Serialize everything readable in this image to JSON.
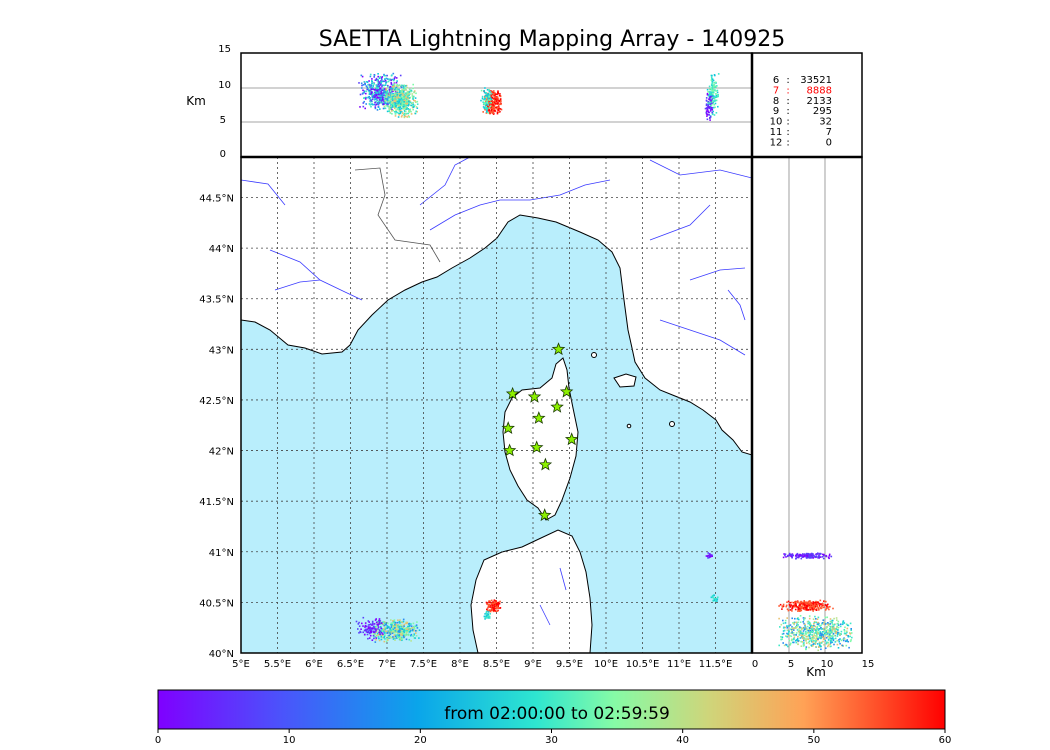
{
  "title": "SAETTA Lightning Mapping Array - 140925",
  "alt_panel": {
    "ylabel": "Km",
    "yticks": [
      "0",
      "5",
      "10",
      "15"
    ]
  },
  "side_panel": {
    "xlabel": "Km",
    "xticks": [
      "0",
      "5",
      "10",
      "15"
    ]
  },
  "map": {
    "lon_ticks": [
      "5°E",
      "5.5°E",
      "6°E",
      "6.5°E",
      "7°E",
      "7.5°E",
      "8°E",
      "8.5°E",
      "9°E",
      "9.5°E",
      "10°E",
      "10.5°E",
      "11°E",
      "11.5°E"
    ],
    "lat_ticks": [
      "40°N",
      "40.5°N",
      "41°N",
      "41.5°N",
      "42°N",
      "42.5°N",
      "43°N",
      "43.5°N",
      "44°N",
      "44.5°N"
    ],
    "sea_color": "#b9eefc",
    "land_color": "#ffffff",
    "station_marker": "green-star",
    "stations": [
      {
        "lon": 9.35,
        "lat": 43.0
      },
      {
        "lon": 8.72,
        "lat": 42.56
      },
      {
        "lon": 9.02,
        "lat": 42.53
      },
      {
        "lon": 9.46,
        "lat": 42.58
      },
      {
        "lon": 9.33,
        "lat": 42.43
      },
      {
        "lon": 9.08,
        "lat": 42.32
      },
      {
        "lon": 8.66,
        "lat": 42.22
      },
      {
        "lon": 9.53,
        "lat": 42.11
      },
      {
        "lon": 8.68,
        "lat": 42.0
      },
      {
        "lon": 9.05,
        "lat": 42.03
      },
      {
        "lon": 9.17,
        "lat": 41.86
      },
      {
        "lon": 9.16,
        "lat": 41.36
      }
    ]
  },
  "stats": [
    {
      "label": "6",
      "value": "33521",
      "color": "#000000"
    },
    {
      "label": "7",
      "value": "8888",
      "color": "#ff0000"
    },
    {
      "label": "8",
      "value": "2133",
      "color": "#000000"
    },
    {
      "label": "9",
      "value": "295",
      "color": "#000000"
    },
    {
      "label": "10",
      "value": "32",
      "color": "#000000"
    },
    {
      "label": "11",
      "value": "7",
      "color": "#000000"
    },
    {
      "label": "12",
      "value": "0",
      "color": "#000000"
    }
  ],
  "colorbar": {
    "label": "from 02:00:00 to 02:59:59",
    "ticks": [
      "0",
      "10",
      "20",
      "30",
      "40",
      "50",
      "60"
    ]
  }
}
